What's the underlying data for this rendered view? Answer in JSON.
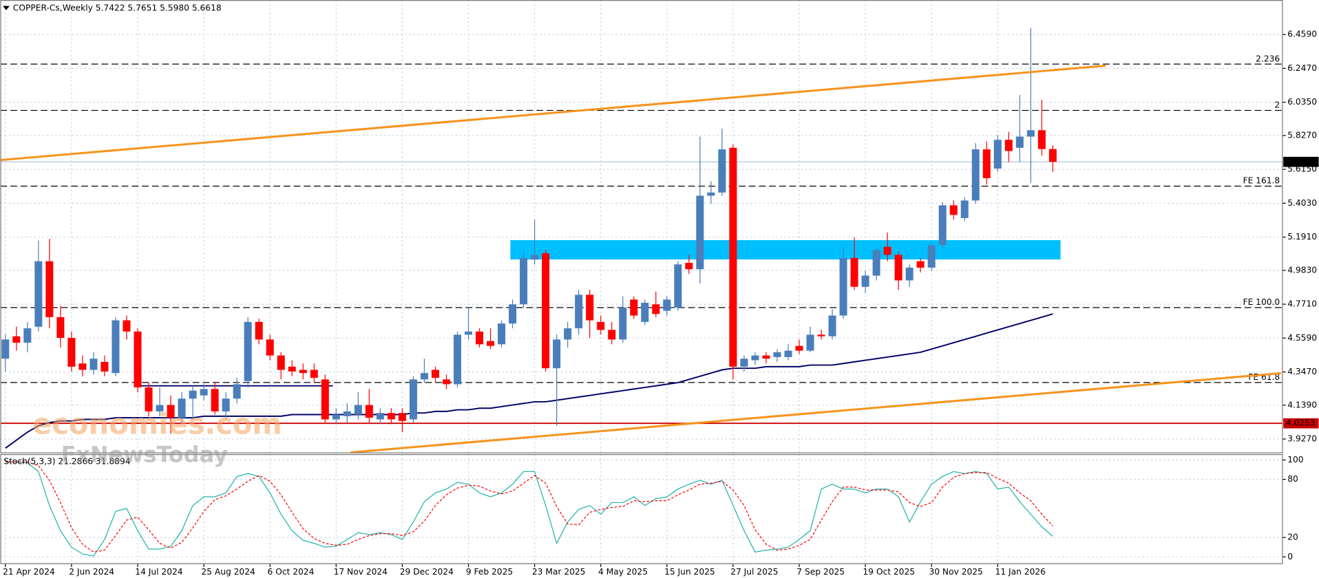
{
  "chart_data": {
    "type": "candlestick",
    "title": "COPPER-Cs,Weekly 5.7422 5.7651 5.5980 5.6618",
    "categories": [
      "21 Apr 2024",
      null,
      null,
      null,
      null,
      null,
      "2 Jun 2024",
      null,
      null,
      null,
      null,
      null,
      "14 Jul 2024",
      null,
      null,
      null,
      null,
      null,
      "25 Aug 2024",
      null,
      null,
      null,
      null,
      null,
      "6 Oct 2024",
      null,
      null,
      null,
      null,
      null,
      "17 Nov 2024",
      null,
      null,
      null,
      null,
      null,
      "29 Dec 2024",
      null,
      null,
      null,
      null,
      null,
      "9 Feb 2025",
      null,
      null,
      null,
      null,
      null,
      "23 Mar 2025",
      null,
      null,
      null,
      null,
      null,
      "4 May 2025",
      null,
      null,
      null,
      null,
      null,
      "15 Jun 2025",
      null,
      null,
      null,
      null,
      null,
      "27 Jul 2025",
      null,
      null,
      null,
      null,
      null,
      "7 Sep 2025",
      null,
      null,
      null,
      null,
      null,
      "19 Oct 2025",
      null,
      null,
      null,
      null,
      null,
      "30 Nov 2025",
      null,
      null,
      null,
      null,
      null,
      "11 Jan 2026",
      null,
      null,
      null,
      null,
      null
    ],
    "open": [
      4.43,
      4.57,
      4.53,
      4.63,
      5.04,
      4.69,
      4.56,
      4.4,
      4.36,
      4.41,
      4.34,
      4.67,
      4.6,
      4.25,
      4.1,
      4.14,
      4.06,
      4.18,
      4.2,
      4.24,
      4.1,
      4.18,
      4.29,
      4.66,
      4.55,
      4.45,
      4.38,
      4.36,
      4.36,
      4.3,
      4.05,
      4.07,
      4.08,
      4.14,
      4.05,
      4.09,
      4.09,
      4.05,
      4.3,
      4.36,
      4.3,
      4.27,
      4.58,
      4.6,
      4.54,
      4.52,
      4.65,
      4.77,
      5.05,
      5.09,
      4.37,
      4.55,
      4.62,
      4.83,
      4.66,
      4.61,
      4.55,
      4.8,
      4.66,
      4.77,
      4.73,
      4.75,
      5.03,
      4.99,
      5.45,
      5.47,
      5.75,
      4.38,
      4.42,
      4.45,
      4.44,
      4.44,
      4.51,
      4.48,
      4.58,
      4.57,
      4.7,
      5.06,
      4.88,
      4.95,
      5.13,
      5.08,
      4.92,
      5.04,
      5.0,
      5.14,
      5.39,
      5.31,
      5.42,
      5.74,
      5.62,
      5.8,
      5.75,
      5.82,
      5.86,
      5.7422
    ],
    "high": [
      4.58,
      4.63,
      4.66,
      5.17,
      5.18,
      4.76,
      4.6,
      4.45,
      4.47,
      4.45,
      4.69,
      4.7,
      4.62,
      4.28,
      4.25,
      4.2,
      4.22,
      4.26,
      4.27,
      4.28,
      4.22,
      4.31,
      4.69,
      4.68,
      4.58,
      4.47,
      4.42,
      4.4,
      4.4,
      4.33,
      4.12,
      4.15,
      4.22,
      4.24,
      4.12,
      4.12,
      4.12,
      4.32,
      4.43,
      4.38,
      4.33,
      4.6,
      4.75,
      4.62,
      4.62,
      4.67,
      4.8,
      5.1,
      5.3,
      5.11,
      4.58,
      4.66,
      4.86,
      4.86,
      4.7,
      4.66,
      4.82,
      4.82,
      4.8,
      4.85,
      4.82,
      5.04,
      5.08,
      5.82,
      5.54,
      5.87,
      5.77,
      4.45,
      4.47,
      4.47,
      4.49,
      4.52,
      4.55,
      4.63,
      4.61,
      4.74,
      5.13,
      5.19,
      4.98,
      5.12,
      5.22,
      5.1,
      5.02,
      5.06,
      5.16,
      5.41,
      5.42,
      5.44,
      5.78,
      5.79,
      5.83,
      5.85,
      6.08,
      6.5,
      6.05,
      5.7651
    ],
    "low": [
      4.35,
      4.48,
      4.47,
      4.6,
      4.62,
      4.5,
      4.35,
      4.32,
      4.33,
      4.32,
      4.32,
      4.55,
      4.22,
      4.07,
      4.07,
      3.96,
      4.02,
      4.05,
      4.17,
      4.08,
      4.05,
      4.15,
      4.25,
      4.52,
      4.42,
      4.3,
      4.32,
      4.3,
      4.28,
      4.03,
      4.02,
      4.03,
      4.05,
      4.03,
      4.02,
      4.02,
      3.97,
      4.03,
      4.28,
      4.28,
      4.24,
      4.25,
      4.55,
      4.5,
      4.49,
      4.5,
      4.62,
      4.75,
      5.02,
      4.35,
      4.01,
      4.5,
      4.58,
      4.56,
      4.58,
      4.52,
      4.53,
      4.68,
      4.64,
      4.69,
      4.7,
      4.73,
      4.96,
      4.9,
      5.4,
      5.45,
      4.3,
      4.35,
      4.39,
      4.4,
      4.41,
      4.42,
      4.46,
      4.47,
      4.55,
      4.55,
      4.68,
      4.86,
      4.84,
      4.92,
      5.04,
      4.86,
      4.88,
      4.97,
      4.98,
      5.12,
      5.3,
      5.29,
      5.4,
      5.52,
      5.6,
      5.66,
      5.66,
      5.53,
      5.7,
      5.598
    ],
    "close": [
      4.55,
      4.53,
      4.62,
      5.04,
      4.69,
      4.56,
      4.38,
      4.36,
      4.43,
      4.35,
      4.67,
      4.6,
      4.25,
      4.1,
      4.14,
      4.06,
      4.18,
      4.23,
      4.24,
      4.1,
      4.18,
      4.27,
      4.66,
      4.55,
      4.45,
      4.36,
      4.35,
      4.34,
      4.31,
      4.05,
      4.08,
      4.1,
      4.14,
      4.06,
      4.09,
      4.05,
      4.04,
      4.3,
      4.34,
      4.31,
      4.27,
      4.58,
      4.6,
      4.52,
      4.51,
      4.65,
      4.77,
      5.06,
      5.08,
      4.37,
      4.55,
      4.62,
      4.83,
      4.67,
      4.61,
      4.55,
      4.75,
      4.7,
      4.78,
      4.71,
      4.8,
      5.02,
      4.99,
      5.45,
      5.47,
      5.74,
      4.38,
      4.43,
      4.45,
      4.43,
      4.47,
      4.48,
      4.48,
      4.58,
      4.57,
      4.7,
      5.06,
      4.88,
      4.95,
      5.11,
      5.08,
      4.92,
      5.0,
      5.0,
      5.14,
      5.39,
      5.33,
      5.42,
      5.74,
      5.56,
      5.8,
      5.73,
      5.82,
      5.86,
      5.7422,
      5.6618
    ],
    "up_color": "#4a7ebb",
    "down_color": "#ff0000",
    "ylim": [
      3.843,
      6.675
    ],
    "yticks": [
      {
        "value": 6.459,
        "label": "6.4590"
      },
      {
        "value": 6.247,
        "label": "6.2470"
      },
      {
        "value": 6.035,
        "label": "6.0350"
      },
      {
        "value": 5.827,
        "label": "5.8270"
      },
      {
        "value": 5.615,
        "label": "5.6150"
      },
      {
        "value": 5.403,
        "label": "5.4030"
      },
      {
        "value": 5.191,
        "label": "5.1910"
      },
      {
        "value": 4.983,
        "label": "4.9830"
      },
      {
        "value": 4.771,
        "label": "4.7710"
      },
      {
        "value": 4.559,
        "label": "4.5590"
      },
      {
        "value": 4.347,
        "label": "4.3470"
      },
      {
        "value": 4.139,
        "label": "4.1390"
      },
      {
        "value": 3.927,
        "label": "3.9270"
      }
    ],
    "grid": true,
    "moving_average": {
      "color": "#000066",
      "values": [
        3.87,
        3.92,
        3.97,
        4.01,
        4.03,
        4.04,
        4.04,
        4.05,
        4.05,
        4.05,
        4.06,
        4.06,
        4.06,
        4.06,
        4.06,
        4.06,
        4.06,
        4.06,
        4.07,
        4.07,
        4.07,
        4.07,
        4.07,
        4.07,
        4.07,
        4.07,
        4.08,
        4.08,
        4.08,
        4.08,
        4.08,
        4.08,
        4.08,
        4.08,
        4.08,
        4.08,
        4.08,
        4.09,
        4.09,
        4.1,
        4.1,
        4.11,
        4.11,
        4.12,
        4.12,
        4.13,
        4.14,
        4.15,
        4.16,
        4.16,
        4.17,
        4.18,
        4.19,
        4.2,
        4.21,
        4.22,
        4.23,
        4.24,
        4.25,
        4.26,
        4.27,
        4.28,
        4.3,
        4.32,
        4.34,
        4.36,
        4.37,
        4.37,
        4.37,
        4.38,
        4.38,
        4.38,
        4.38,
        4.39,
        4.39,
        4.39,
        4.4,
        4.41,
        4.42,
        4.43,
        4.44,
        4.45,
        4.46,
        4.47,
        4.49,
        4.51,
        4.53,
        4.55,
        4.57,
        4.59,
        4.61,
        4.63,
        4.65,
        4.67,
        4.69,
        4.71
      ]
    },
    "levels": [
      {
        "value": 6.274,
        "name": "2.236"
      },
      {
        "value": 5.984,
        "name": "2"
      },
      {
        "value": 5.51,
        "name": "FE 161.8"
      },
      {
        "value": 4.75,
        "name": "FE 100.0"
      },
      {
        "value": 4.281,
        "name": "FE 61.8"
      }
    ],
    "support_level": {
      "value": 4.0253,
      "color": "#cc0000"
    },
    "zone": {
      "x": [
        45.8,
        95.7
      ],
      "y": [
        5.051,
        5.172
      ],
      "color": "#00bfff"
    },
    "trendline_color": "#f7931e",
    "trendlines": [
      {
        "x": [
          -0.46,
          99.8
        ],
        "y": [
          5.673,
          6.264
        ]
      },
      {
        "x": [
          31.3,
          115.7
        ],
        "y": [
          3.843,
          4.339
        ]
      }
    ],
    "range_line": {
      "x": [
        12.2,
        29.7
      ],
      "y": [
        4.26,
        4.26
      ],
      "color": "#000066"
    },
    "watermarks": [
      {
        "text": "economies.com",
        "color": "#f4a460"
      },
      {
        "text": "FxNewsToday",
        "color": "#9a9a9a"
      }
    ],
    "stochastic": {
      "label": "Stoch(5,3,3) 21.2866 31.8894",
      "ylim": [
        -7,
        106
      ],
      "yticks": [
        0,
        20,
        80,
        100
      ],
      "k_color": "#20b2aa",
      "d_color": "#ff0000",
      "k": [
        98,
        98,
        97,
        88,
        53,
        27,
        10,
        3,
        1,
        18,
        47,
        50,
        27,
        8,
        8,
        11,
        27,
        53,
        62,
        62,
        66,
        83,
        86,
        83,
        66,
        44,
        27,
        17,
        14,
        10,
        11,
        18,
        25,
        23,
        25,
        23,
        18,
        36,
        57,
        66,
        70,
        77,
        75,
        66,
        62,
        66,
        75,
        88,
        88,
        53,
        14,
        36,
        49,
        53,
        44,
        56,
        56,
        62,
        53,
        60,
        62,
        70,
        75,
        79,
        75,
        79,
        53,
        27,
        5,
        7,
        8,
        10,
        18,
        27,
        70,
        75,
        70,
        70,
        66,
        70,
        70,
        62,
        36,
        57,
        75,
        83,
        88,
        86,
        88,
        86,
        70,
        72,
        57,
        44,
        31,
        21.28
      ],
      "d": [
        98,
        98,
        98,
        94,
        79,
        56,
        30,
        13,
        5,
        7,
        22,
        38,
        41,
        28,
        14,
        9,
        15,
        30,
        47,
        59,
        63,
        70,
        78,
        84,
        78,
        64,
        46,
        29,
        19,
        14,
        12,
        13,
        18,
        22,
        24,
        24,
        22,
        26,
        37,
        53,
        64,
        71,
        74,
        73,
        68,
        65,
        68,
        76,
        84,
        76,
        52,
        34,
        33,
        46,
        49,
        51,
        52,
        58,
        57,
        58,
        58,
        64,
        69,
        75,
        76,
        78,
        69,
        53,
        28,
        13,
        7,
        8,
        12,
        18,
        38,
        57,
        72,
        72,
        69,
        69,
        69,
        67,
        56,
        52,
        56,
        72,
        82,
        86,
        87,
        87,
        81,
        76,
        66,
        58,
        44,
        31.89
      ]
    }
  }
}
